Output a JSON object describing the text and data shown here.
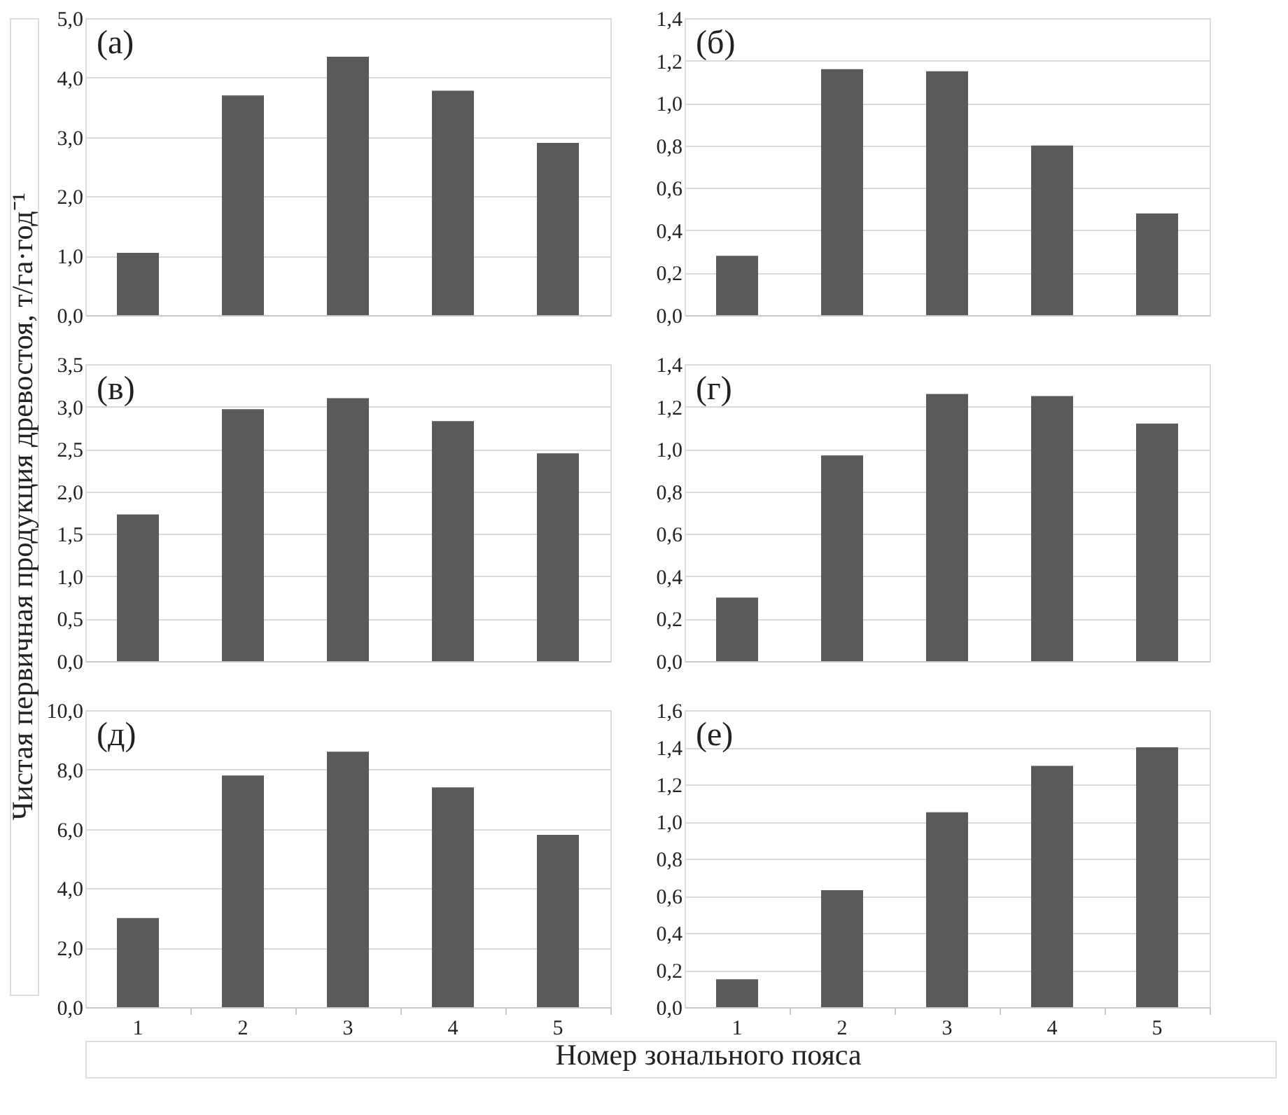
{
  "chart_data": [
    {
      "type": "bar",
      "title": "(а)",
      "categories": [
        "1",
        "2",
        "3",
        "4",
        "5"
      ],
      "values": [
        1.05,
        3.7,
        4.35,
        3.78,
        2.9
      ],
      "color": "#5a5a5a",
      "ylim": [
        0,
        5
      ],
      "yticks": [
        {
          "value": 0,
          "label": "0,0"
        },
        {
          "value": 1,
          "label": "1,0"
        },
        {
          "value": 2,
          "label": "2,0"
        },
        {
          "value": 3,
          "label": "3,0"
        },
        {
          "value": 4,
          "label": "4,0"
        },
        {
          "value": 5,
          "label": "5,0"
        }
      ],
      "grid": "y",
      "tick_labels": "y"
    },
    {
      "type": "bar",
      "title": "(б)",
      "categories": [
        "1",
        "2",
        "3",
        "4",
        "5"
      ],
      "values": [
        0.28,
        1.16,
        1.15,
        0.8,
        0.48
      ],
      "color": "#5a5a5a",
      "ylim": [
        0,
        1.4
      ],
      "yticks": [
        {
          "value": 0,
          "label": "0,0"
        },
        {
          "value": 0.2,
          "label": "0,2"
        },
        {
          "value": 0.4,
          "label": "0,4"
        },
        {
          "value": 0.6,
          "label": "0,6"
        },
        {
          "value": 0.8,
          "label": "0,8"
        },
        {
          "value": 1.0,
          "label": "1,0"
        },
        {
          "value": 1.2,
          "label": "1,2"
        },
        {
          "value": 1.4,
          "label": "1,4"
        }
      ],
      "grid": "y",
      "tick_labels": "y"
    },
    {
      "type": "bar",
      "title": "(в)",
      "ylabel": "Чистая первичная продукция древостоя, т/га·год⁻¹",
      "categories": [
        "1",
        "2",
        "3",
        "4",
        "5"
      ],
      "values": [
        1.73,
        2.97,
        3.1,
        2.83,
        2.45
      ],
      "color": "#5a5a5a",
      "ylim": [
        0,
        3.5
      ],
      "yticks": [
        {
          "value": 0,
          "label": "0,0"
        },
        {
          "value": 0.5,
          "label": "0,5"
        },
        {
          "value": 1.0,
          "label": "1,0"
        },
        {
          "value": 1.5,
          "label": "1,5"
        },
        {
          "value": 2.0,
          "label": "2,0"
        },
        {
          "value": 2.5,
          "label": "2,5"
        },
        {
          "value": 3.0,
          "label": "3,0"
        },
        {
          "value": 3.5,
          "label": "3,5"
        }
      ],
      "grid": "y",
      "tick_labels": "y"
    },
    {
      "type": "bar",
      "title": "(г)",
      "categories": [
        "1",
        "2",
        "3",
        "4",
        "5"
      ],
      "values": [
        0.3,
        0.97,
        1.26,
        1.25,
        1.12
      ],
      "color": "#5a5a5a",
      "ylim": [
        0,
        1.4
      ],
      "yticks": [
        {
          "value": 0,
          "label": "0,0"
        },
        {
          "value": 0.2,
          "label": "0,2"
        },
        {
          "value": 0.4,
          "label": "0,4"
        },
        {
          "value": 0.6,
          "label": "0,6"
        },
        {
          "value": 0.8,
          "label": "0,8"
        },
        {
          "value": 1.0,
          "label": "1,0"
        },
        {
          "value": 1.2,
          "label": "1,2"
        },
        {
          "value": 1.4,
          "label": "1,4"
        }
      ],
      "grid": "y",
      "tick_labels": "y"
    },
    {
      "type": "bar",
      "title": "(д)",
      "xlabel": "Номер зонального пояса",
      "categories": [
        "1",
        "2",
        "3",
        "4",
        "5"
      ],
      "values": [
        3.0,
        7.8,
        8.6,
        7.4,
        5.8
      ],
      "color": "#5a5a5a",
      "ylim": [
        0,
        10
      ],
      "yticks": [
        {
          "value": 0,
          "label": "0,0"
        },
        {
          "value": 2,
          "label": "2,0"
        },
        {
          "value": 4,
          "label": "4,0"
        },
        {
          "value": 6,
          "label": "6,0"
        },
        {
          "value": 8,
          "label": "8,0"
        },
        {
          "value": 10,
          "label": "10,0"
        }
      ],
      "grid": "y"
    },
    {
      "type": "bar",
      "title": "(е)",
      "categories": [
        "1",
        "2",
        "3",
        "4",
        "5"
      ],
      "values": [
        0.15,
        0.63,
        1.05,
        1.3,
        1.4
      ],
      "color": "#5a5a5a",
      "ylim": [
        0,
        1.6
      ],
      "yticks": [
        {
          "value": 0,
          "label": "0,0"
        },
        {
          "value": 0.2,
          "label": "0,2"
        },
        {
          "value": 0.4,
          "label": "0,4"
        },
        {
          "value": 0.6,
          "label": "0,6"
        },
        {
          "value": 0.8,
          "label": "0,8"
        },
        {
          "value": 1.0,
          "label": "1,0"
        },
        {
          "value": 1.2,
          "label": "1,2"
        },
        {
          "value": 1.4,
          "label": "1,4"
        },
        {
          "value": 1.6,
          "label": "1,6"
        }
      ],
      "grid": "y"
    }
  ]
}
